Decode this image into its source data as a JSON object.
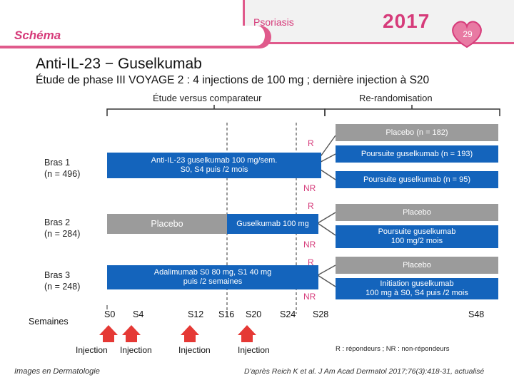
{
  "header": {
    "section": "Schéma",
    "topic": "Psoriasis",
    "year": "2017",
    "page_number": "29"
  },
  "title": "Anti-IL-23 − Guselkumab",
  "subtitle": "Étude de phase III VOYAGE 2 : 4 injections de 100 mg ; dernière injection à S20",
  "phases": {
    "comparator": "Étude versus comparateur",
    "rerandom": "Re-randomisation"
  },
  "arms": [
    {
      "label_line1": "Bras 1",
      "label_line2": "(n = 496)"
    },
    {
      "label_line1": "Bras 2",
      "label_line2": "(n = 284)"
    },
    {
      "label_line1": "Bras 3",
      "label_line2": "(n = 248)"
    }
  ],
  "boxes": {
    "arm1_main_line1": "Anti-IL-23 guselkumab 100 mg/sem.",
    "arm1_main_line2": "S0, S4 puis /2 mois",
    "arm1_placebo": "Placebo (n = 182)",
    "arm1_continue_r": "Poursuite guselkumab (n = 193)",
    "arm1_continue_nr": "Poursuite guselkumab (n = 95)",
    "arm2_placebo": "Placebo",
    "arm2_gusel": "Guselkumab 100 mg",
    "arm2_r_placebo": "Placebo",
    "arm2_nr_line1": "Poursuite guselkumab",
    "arm2_nr_line2": "100 mg/2 mois",
    "arm3_main_line1": "Adalimumab S0 80 mg, S1 40 mg",
    "arm3_main_line2": "puis /2 semaines",
    "arm3_r_placebo": "Placebo",
    "arm3_nr_line1": "Initiation guselkumab",
    "arm3_nr_line2": "100 mg à S0, S4 puis /2 mois"
  },
  "response_labels": {
    "r": "R",
    "nr": "NR"
  },
  "weeks": {
    "label": "Semaines",
    "s0": "S0",
    "s4": "S4",
    "s12": "S12",
    "s16": "S16",
    "s20": "S20",
    "s24": "S24",
    "s28": "S28",
    "s48": "S48"
  },
  "injection_label": "Injection",
  "legend": "R : répondeurs ; NR : non-répondeurs",
  "footer": {
    "left": "Images en Dermatologie",
    "right": "D'après Reich K et al. J Am Acad Dermatol 2017;76(3):418-31, actualisé"
  },
  "colors": {
    "accent": "#d63b7a",
    "blue": "#1464bc",
    "grey": "#9b9b9b",
    "injection_arrow": "#e53935"
  }
}
